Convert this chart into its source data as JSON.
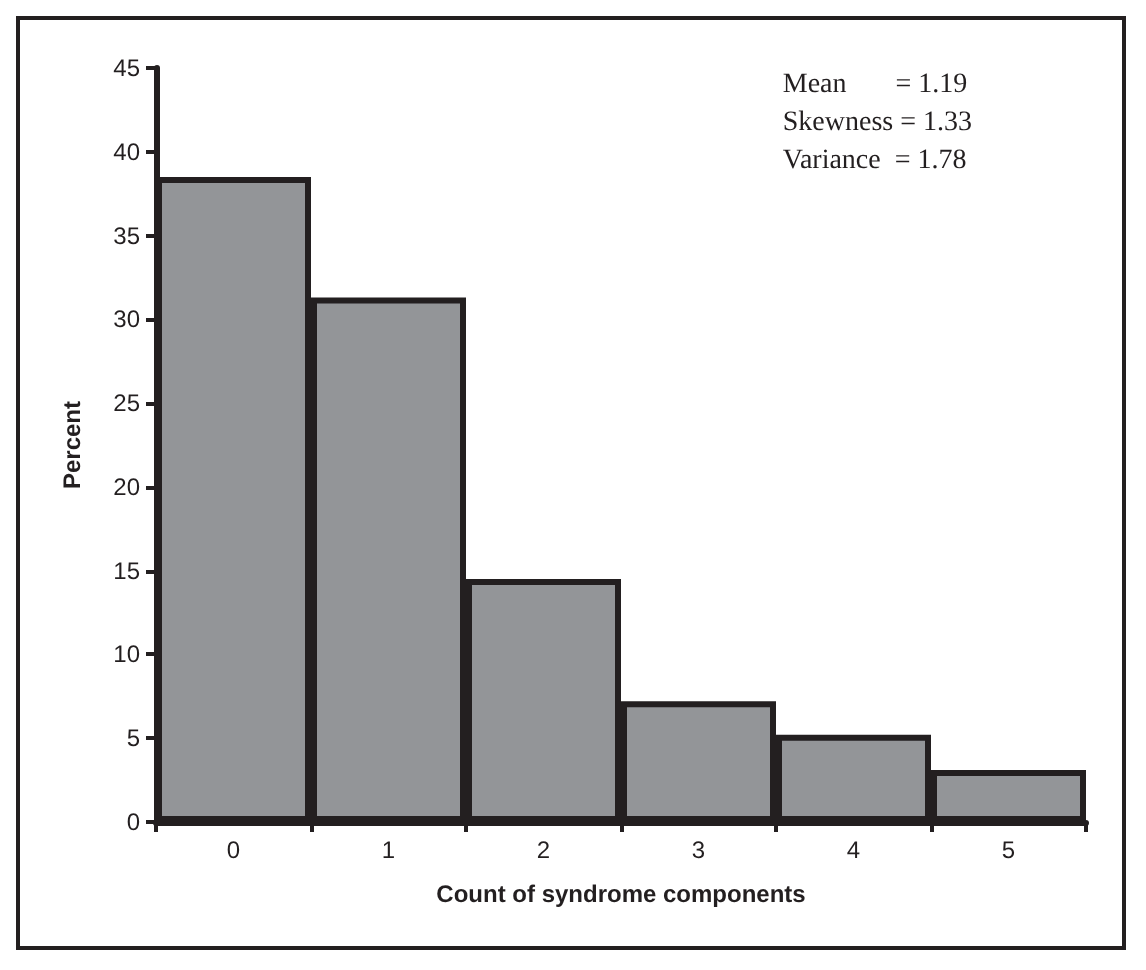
{
  "chart_data": {
    "type": "bar",
    "xlabel": "Count of syndrome components",
    "ylabel": "Percent",
    "categories": [
      "0",
      "1",
      "2",
      "3",
      "4",
      "5"
    ],
    "values": [
      38.5,
      31.3,
      14.5,
      7.2,
      5.2,
      3.1
    ],
    "color": "#939598",
    "ylim": [
      0,
      45
    ],
    "yticks": [
      0,
      5,
      10,
      15,
      20,
      25,
      30,
      35,
      40,
      45
    ],
    "grid": false,
    "annotations": [
      "Mean       = 1.19",
      "Skewness = 1.33",
      "Variance  = 1.78"
    ]
  }
}
